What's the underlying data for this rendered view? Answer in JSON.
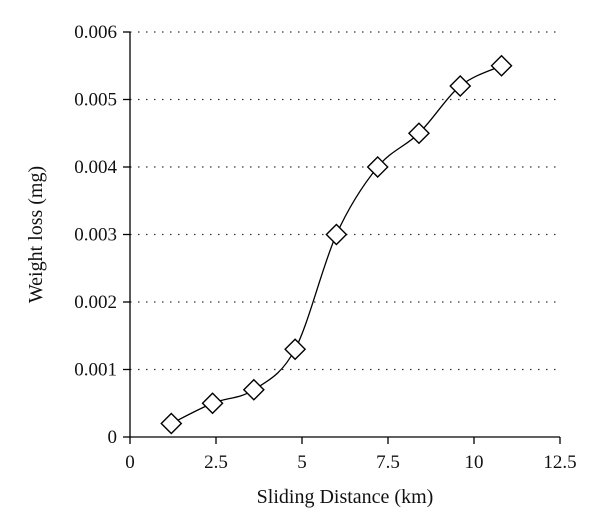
{
  "chart_data": {
    "type": "line",
    "title": "",
    "xlabel": "Sliding Distance (km)",
    "ylabel": "Weight loss (mg)",
    "xlim": [
      0,
      12.5
    ],
    "ylim": [
      0,
      0.006
    ],
    "x_ticks": [
      "0",
      "2.5",
      "5",
      "7.5",
      "10",
      "12.5"
    ],
    "x_tick_values": [
      0,
      2.5,
      5,
      7.5,
      10,
      12.5
    ],
    "y_ticks": [
      "0",
      "0.001",
      "0.002",
      "0.003",
      "0.004",
      "0.005",
      "0.006"
    ],
    "y_tick_values": [
      0,
      0.001,
      0.002,
      0.003,
      0.004,
      0.005,
      0.006
    ],
    "grid": "horizontal dotted",
    "marker": "diamond",
    "series": [
      {
        "x": [
          1.2,
          2.4,
          3.6,
          4.8,
          6.0,
          7.2,
          8.4,
          9.6,
          10.8
        ],
        "y": [
          0.0002,
          0.0005,
          0.0007,
          0.0013,
          0.003,
          0.004,
          0.0045,
          0.0052,
          0.0055
        ]
      }
    ]
  }
}
